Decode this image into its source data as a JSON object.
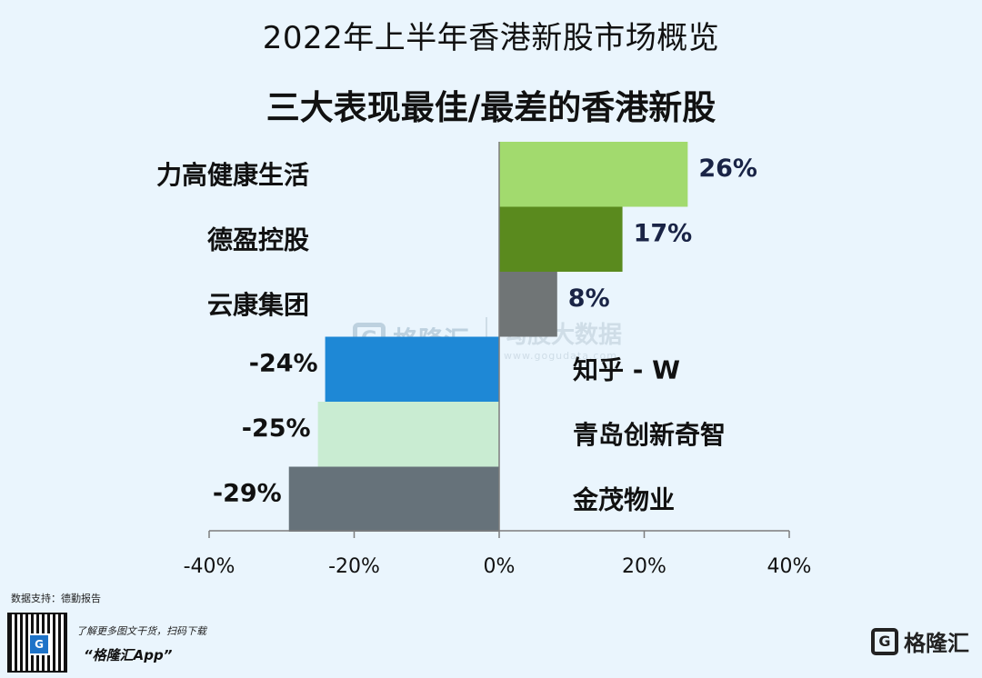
{
  "header": {
    "title": "2022年上半年香港新股市场概览",
    "subtitle": "三大表现最佳/最差的香港新股"
  },
  "watermark": {
    "brand": "格隆汇",
    "right_text": "勾股大数据",
    "url": "www.gogudata.com"
  },
  "footer": {
    "source": "数据支持：德勤报告",
    "promo_line": "了解更多图文干货，扫码下载",
    "app_name": "“格隆汇App”",
    "brand": "格隆汇"
  },
  "chart_data": {
    "type": "bar",
    "orientation": "horizontal",
    "title": "三大表现最佳/最差的香港新股",
    "categories": [
      "力高健康生活",
      "德盈控股",
      "云康集团",
      "知乎 - W",
      "青岛创新奇智",
      "金茂物业"
    ],
    "values": [
      26,
      17,
      8,
      -24,
      -25,
      -29
    ],
    "value_labels": [
      "26%",
      "17%",
      "8%",
      "-24%",
      "-25%",
      "-29%"
    ],
    "bar_colors": [
      "#a2da6e",
      "#5a8a1e",
      "#707576",
      "#1e88d6",
      "#c9ecd2",
      "#66727a"
    ],
    "xlim": [
      -40,
      40
    ],
    "x_ticks": [
      -40,
      -20,
      0,
      20,
      40
    ],
    "x_tick_labels": [
      "-40%",
      "-20%",
      "0%",
      "20%",
      "40%"
    ],
    "grid": false
  }
}
